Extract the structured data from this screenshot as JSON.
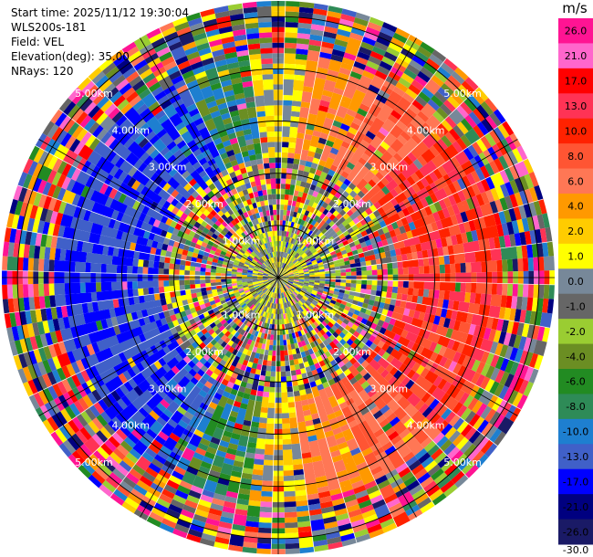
{
  "header": {
    "start_time": "Start time: 2025/11/12 19:30:04",
    "instrument": "WLS200s-181",
    "field": "Field: VEL",
    "elevation": "Elevation(deg): 35.00",
    "nrays": "NRays: 120"
  },
  "colorbar": {
    "unit": "m/s",
    "labels": [
      "26.0",
      "21.0",
      "17.0",
      "13.0",
      "10.0",
      "8.0",
      "6.0",
      "4.0",
      "2.0",
      "1.0",
      "0.0",
      "-1.0",
      "-2.0",
      "-4.0",
      "-6.0",
      "-8.0",
      "-10.0",
      "-13.0",
      "-17.0",
      "-21.0",
      "-26.0",
      "-30.0"
    ],
    "colors": [
      "#ff1493",
      "#ff66cc",
      "#ff0000",
      "#ff3355",
      "#ff2200",
      "#ff5533",
      "#ff7755",
      "#ff9900",
      "#ffcc00",
      "#ffff00",
      "#778899",
      "#666666",
      "#9acd32",
      "#6b8e23",
      "#228b22",
      "#2e8b57",
      "#1e7fd0",
      "#4060c8",
      "#0000ff",
      "#000080",
      "#1a1a66"
    ]
  },
  "chart_data": {
    "type": "ppi",
    "field": "VEL",
    "units": "m/s",
    "elevation_deg": 35.0,
    "n_rays": 120,
    "range_rings_km": [
      {
        "label": "1.00km",
        "value": 1.0
      },
      {
        "label": "2.00km",
        "value": 2.0
      },
      {
        "label": "3.00km",
        "value": 3.0
      },
      {
        "label": "4.00km",
        "value": 4.0
      },
      {
        "label": "5.00km",
        "value": 5.0
      }
    ],
    "max_range_km": 5.3,
    "wind_direction_note": "Positive (toward-red) velocities in the east sector, negative (blue) in the west; near-zero (gray/yellow) in north-south bands; noisy beyond ~2.5 km",
    "vmin": -30.0,
    "vmax": 26.0,
    "zones": [
      {
        "range_km": [
          0.0,
          0.9
        ],
        "pattern": "near-zero, gray/olive/yellow speckle"
      },
      {
        "range_km": [
          0.9,
          2.3
        ],
        "pattern": "noisy multicolor speckle"
      },
      {
        "range_km": [
          2.3,
          4.3
        ],
        "pattern": "coherent dipole: blue west, red/orange east, yellow north/south"
      },
      {
        "range_km": [
          4.3,
          5.3
        ],
        "pattern": "noise, full color range"
      }
    ]
  }
}
